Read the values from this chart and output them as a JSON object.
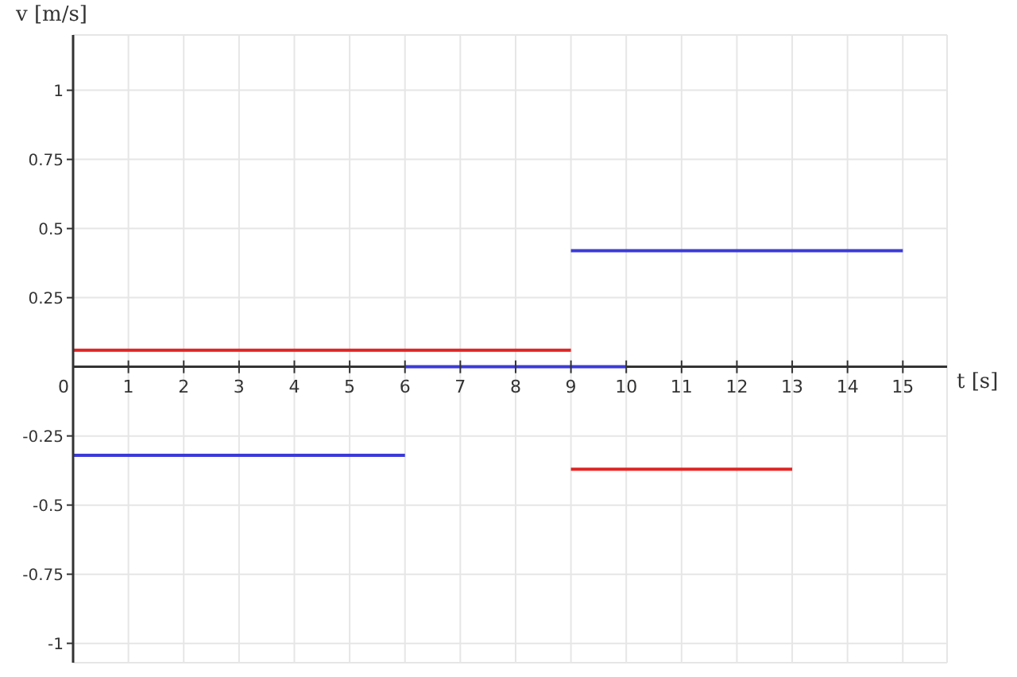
{
  "chart_data": {
    "type": "line",
    "xlabel": "t [s]",
    "ylabel": "v [m/s]",
    "xlim": [
      0,
      15.8
    ],
    "ylim": [
      -1.07,
      1.2
    ],
    "xticks": [
      0,
      1,
      2,
      3,
      4,
      5,
      6,
      7,
      8,
      9,
      10,
      11,
      12,
      13,
      14,
      15
    ],
    "yticks": [
      -1,
      -0.75,
      -0.5,
      -0.25,
      0.25,
      0.5,
      0.75,
      1
    ],
    "grid": true,
    "marker": "none",
    "line_style": "solid",
    "series": [
      {
        "color": "#3b3bd8",
        "x": [
          0,
          6
        ],
        "values": [
          -0.32,
          -0.32
        ]
      },
      {
        "color": "#3b3bd8",
        "x": [
          6,
          10
        ],
        "values": [
          0,
          0
        ]
      },
      {
        "color": "#3b3bd8",
        "x": [
          9,
          15
        ],
        "values": [
          0.42,
          0.42
        ]
      },
      {
        "color": "#e02424",
        "x": [
          0,
          9
        ],
        "values": [
          0.06,
          0.06
        ]
      },
      {
        "color": "#e02424",
        "x": [
          9,
          13
        ],
        "values": [
          -0.37,
          -0.37
        ]
      }
    ]
  }
}
